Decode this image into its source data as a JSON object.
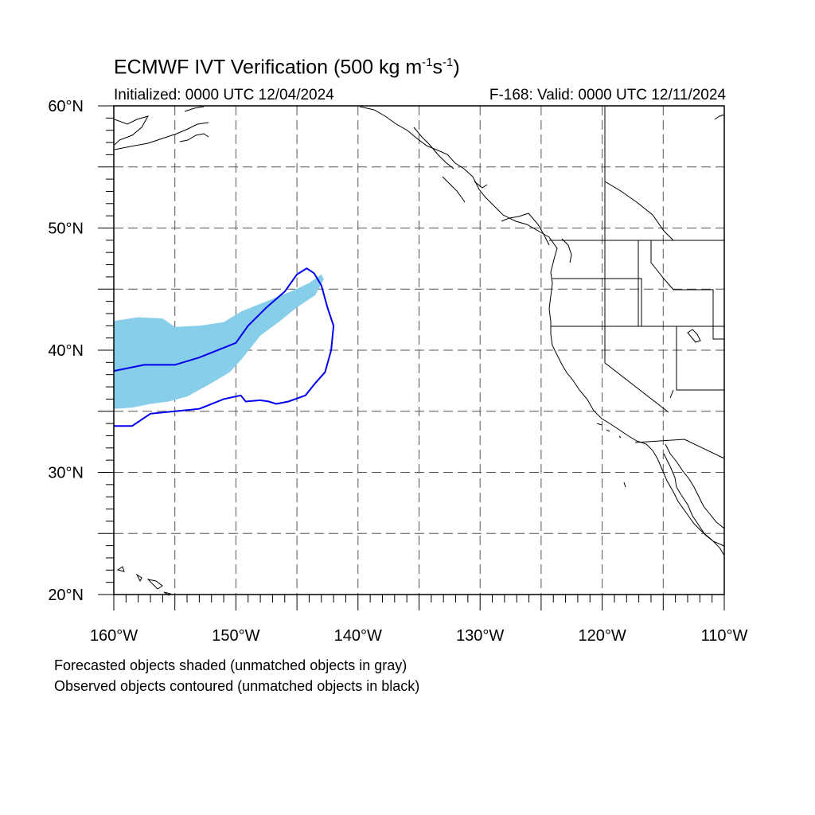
{
  "title": {
    "prefix": "ECMWF IVT Verification (500 kg m",
    "exp1": "-1",
    "mid": "s",
    "exp2": "-1",
    "suffix": ")"
  },
  "initialized": "Initialized: 0000 UTC 12/04/2024",
  "valid": "F-168: Valid: 0000 UTC 12/11/2024",
  "notes": [
    "Forecasted objects shaded (unmatched objects in gray)",
    "Observed objects contoured (unmatched objects in black)"
  ],
  "map": {
    "lon_range": [
      -160,
      -110
    ],
    "lat_range": [
      20,
      60
    ],
    "lat_labels": [
      {
        "value": 20,
        "label": "20°N"
      },
      {
        "value": 30,
        "label": "30°N"
      },
      {
        "value": 40,
        "label": "40°N"
      },
      {
        "value": 50,
        "label": "50°N"
      },
      {
        "value": 60,
        "label": "60°N"
      }
    ],
    "lon_labels": [
      {
        "value": -160,
        "label": "160°W"
      },
      {
        "value": -150,
        "label": "150°W"
      },
      {
        "value": -140,
        "label": "140°W"
      },
      {
        "value": -130,
        "label": "130°W"
      },
      {
        "value": -120,
        "label": "120°W"
      },
      {
        "value": -110,
        "label": "110°W"
      }
    ],
    "gridline_interval_deg": 5,
    "colors": {
      "forecast_fill": "#87ceeb",
      "observed_contour": "#0000ee",
      "coastline": "#000000",
      "grid": "#555555"
    },
    "forecast_object_lonlat": [
      [
        -160,
        42.4
      ],
      [
        -158,
        42.7
      ],
      [
        -156,
        42.6
      ],
      [
        -155,
        41.9
      ],
      [
        -153,
        42.0
      ],
      [
        -151,
        42.3
      ],
      [
        -149.5,
        43.2
      ],
      [
        -147.5,
        44.0
      ],
      [
        -145.5,
        44.8
      ],
      [
        -144,
        45.5
      ],
      [
        -143,
        46.2
      ],
      [
        -142.8,
        45.8
      ],
      [
        -143.5,
        44.5
      ],
      [
        -145,
        43.5
      ],
      [
        -146.5,
        42.3
      ],
      [
        -148,
        41.2
      ],
      [
        -149.5,
        39.3
      ],
      [
        -150.5,
        38.2
      ],
      [
        -152,
        37.3
      ],
      [
        -154,
        36.2
      ],
      [
        -155.5,
        35.8
      ],
      [
        -157,
        35.6
      ],
      [
        -158.5,
        35.3
      ],
      [
        -160,
        35.2
      ]
    ],
    "observed_contour_lonlat": [
      [
        -160,
        38.3
      ],
      [
        -157.5,
        38.8
      ],
      [
        -155,
        38.8
      ],
      [
        -153,
        39.4
      ],
      [
        -151,
        40.2
      ],
      [
        -150,
        40.6
      ],
      [
        -149,
        42.0
      ],
      [
        -147.5,
        43.5
      ],
      [
        -146,
        44.8
      ],
      [
        -145,
        46.2
      ],
      [
        -144.2,
        46.7
      ],
      [
        -143.6,
        46.3
      ],
      [
        -143.0,
        45.3
      ],
      [
        -142.5,
        43.5
      ],
      [
        -142.0,
        42.0
      ],
      [
        -142.2,
        40.0
      ],
      [
        -142.7,
        38.2
      ],
      [
        -143.5,
        37.3
      ],
      [
        -144.3,
        36.3
      ],
      [
        -145.7,
        35.8
      ],
      [
        -146.7,
        35.6
      ],
      [
        -147.3,
        35.8
      ],
      [
        -148.0,
        35.9
      ],
      [
        -149.2,
        35.8
      ],
      [
        -149.6,
        36.3
      ],
      [
        -151.0,
        36.0
      ],
      [
        -153.0,
        35.2
      ],
      [
        -155.0,
        35.0
      ],
      [
        -157.0,
        34.8
      ],
      [
        -158.5,
        33.8
      ],
      [
        -160,
        33.8
      ]
    ]
  }
}
